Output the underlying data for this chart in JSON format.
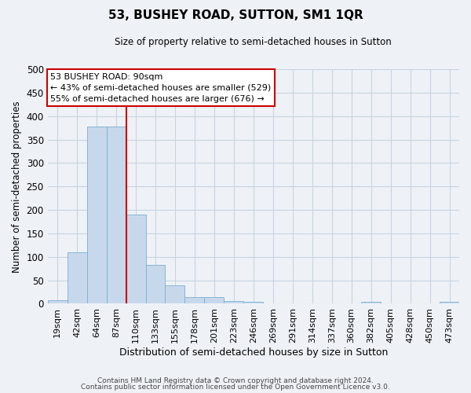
{
  "title": "53, BUSHEY ROAD, SUTTON, SM1 1QR",
  "subtitle": "Size of property relative to semi-detached houses in Sutton",
  "xlabel": "Distribution of semi-detached houses by size in Sutton",
  "ylabel": "Number of semi-detached properties",
  "footer_line1": "Contains HM Land Registry data © Crown copyright and database right 2024.",
  "footer_line2": "Contains public sector information licensed under the Open Government Licence v3.0.",
  "bin_labels": [
    "19sqm",
    "42sqm",
    "64sqm",
    "87sqm",
    "110sqm",
    "133sqm",
    "155sqm",
    "178sqm",
    "201sqm",
    "223sqm",
    "246sqm",
    "269sqm",
    "291sqm",
    "314sqm",
    "337sqm",
    "360sqm",
    "382sqm",
    "405sqm",
    "428sqm",
    "450sqm",
    "473sqm"
  ],
  "bar_heights": [
    7,
    110,
    378,
    378,
    190,
    83,
    40,
    15,
    15,
    5,
    4,
    0,
    0,
    0,
    0,
    0,
    4,
    0,
    0,
    0,
    4
  ],
  "bar_color": "#c8d8ec",
  "bar_edge_color": "#7aaed0",
  "ylim": [
    0,
    500
  ],
  "yticks": [
    0,
    50,
    100,
    150,
    200,
    250,
    300,
    350,
    400,
    450,
    500
  ],
  "property_line_x": 3.5,
  "annotation_title": "53 BUSHEY ROAD: 90sqm",
  "annotation_line1": "← 43% of semi-detached houses are smaller (529)",
  "annotation_line2": "55% of semi-detached houses are larger (676) →",
  "annotation_box_color": "#ffffff",
  "annotation_box_edge_color": "#cc0000",
  "property_line_color": "#cc0000",
  "grid_color": "#c8d4e0",
  "background_color": "#eef2f7"
}
